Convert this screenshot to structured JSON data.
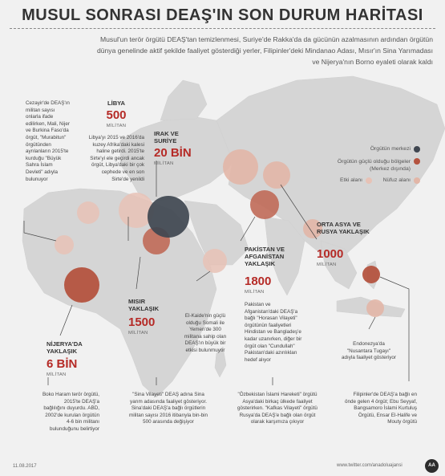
{
  "header": {
    "title": "MUSUL SONRASI DEAŞ'IN SON DURUM HARİTASI",
    "intro": "Musul'un terör örgütü DEAŞ'tan temizlenmesi, Suriye'de Rakka'da da gücünün azalmasının ardından örgütün dünya genelinde aktif şekilde faaliyet gösterdiği yerler, Filipinler'deki Mindanao Adası, Mısır'ın Sina Yarımadası ve Nijerya'nın Borno eyaleti olarak kaldı"
  },
  "legend": {
    "center": "Örgütün merkezi",
    "strong": "Örgütün güçlü olduğu bölgeler\n(Merkez dışında)",
    "activity": "Etki alanı",
    "influence": "Nüfuz alanı"
  },
  "colors": {
    "center": "#3f4650",
    "strong": "#b4533f",
    "activity": "#e7c2b6",
    "accent": "#b52a26"
  },
  "regions": {
    "libya": {
      "name": "LİBYA",
      "count": "500",
      "unit": "MİLİTAN",
      "note": "Libya'yı 2015 ve 2016'da kuzey Afrika'daki kalesi haline getirdi. 2015'te Sirte'yi ele geçirdi ancak örgüt, Libya'daki bir çok cephede ve en son Sirte'de yenildi"
    },
    "iraq_syria": {
      "name": "IRAK VE\nSURİYE",
      "count": "20 BİN",
      "unit": "MİLİTAN"
    },
    "egypt": {
      "name": "MISIR\nYAKLAŞIK",
      "count": "1500",
      "unit": "MİLİTAN",
      "note": "\"Sina Vilayeti\" DEAŞ adına Sina yarım adasında faaliyet gösteriyor. Sina'daki DEAŞ'a bağlı örgütlerin militan sayısı 2016 itibarıyla bin-bin 500 arasında değişiyor"
    },
    "nigeria": {
      "name": "NİJERYA'DA\nYAKLAŞIK",
      "count": "6 BİN",
      "unit": "MİLİTAN",
      "note": "Boko Haram terör örgütü, 2015'te DEAŞ'a bağlılığını duyurdu. ABD, 2002'de kurulan örgütün 4-6 bin militanı bulunduğunu belirtiyor"
    },
    "afpak": {
      "name": "PAKİSTAN VE\nAFGANİSTAN\nYAKLAŞIK",
      "count": "1800",
      "unit": "MİLİTAN",
      "note": "Pakistan ve Afganistan'daki DEAŞ'a bağlı \"Horasan Vilayeti\" örgütünün faaliyetleri Hindistan ve Bangladeş'e kadar uzanırken, diğer bir örgüt olan \"Cundullah\" Pakistan'daki azınlıkları hedef alıyor",
      "note2": "\"Özbekistan İslami Hareketi\" örgütü Asya'daki birkaç ülkede faaliyet gösterirken. \"Kafkas Vilayeti\" örgütü Rusya'da DEAŞ'e bağlı olan örgüt olarak karşımıza çıkıyor"
    },
    "central_asia": {
      "name": "ORTA ASYA VE\nRUSYA YAKLAŞIK",
      "count": "1000",
      "unit": "MİLİTAN"
    },
    "west_africa_note": "Cezayir'de DEAŞ'ın militan sayısı onlarla ifade edilirken, Mali, Nijer ve Burkina Faso'da örgüt, \"Murabitun\" örgütünden ayrılanların 2015'te kurduğu \"Büyük Sahra İslam Devleti\" adıyla bulunuyor",
    "somalia_note": "El-Kaide'nin güçlü olduğu Somali ile Yemen'de 300 militana sahip olan DEAŞ'ın büyük bir etkisi bulunmuyor",
    "indonesia_note": "Endonezya'da \"Nusantara Tugayı\" adıyla faaliyet gösteriyor",
    "philippines_note": "Filipinler'de DEAŞ'a bağlı en önde gelen 4 örgüt; Ebu Seyyaf, Bangsamoro İslami Kurtuluş Örgütü, Ensar El-Halife ve Mouty örgütü"
  },
  "footer": {
    "date": "11.08.2017",
    "links": "www.twitter.com/anadoluajansi",
    "logo": "AA"
  }
}
